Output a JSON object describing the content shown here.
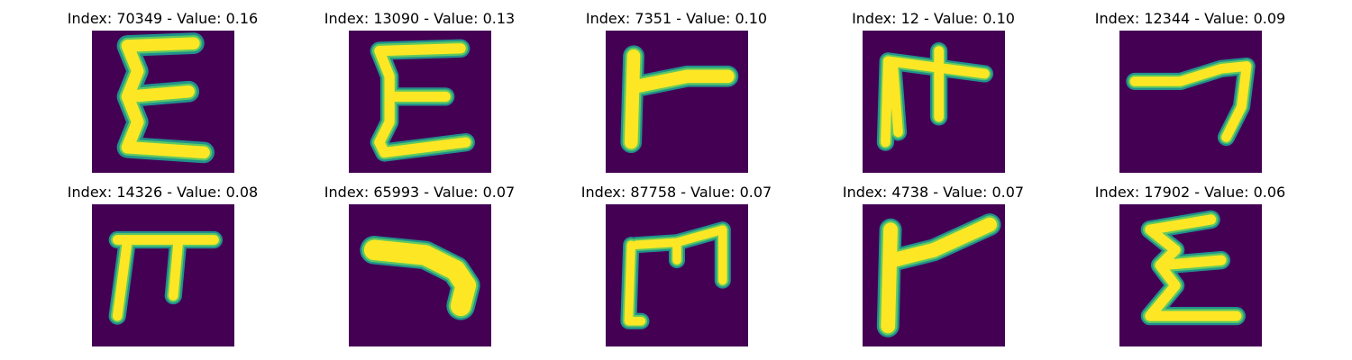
{
  "colors": {
    "background": "#440154",
    "stroke_core": "#fde725",
    "stroke_mid": "#5ec962",
    "stroke_edge": "#21918c"
  },
  "panels": [
    {
      "title": "Index: 70349 - Value: 0.16",
      "glyph": "glyph-e-upright",
      "value": 0.16
    },
    {
      "title": "Index: 13090 - Value: 0.13",
      "glyph": "glyph-e-upright-2",
      "value": 0.13
    },
    {
      "title": "Index: 7351 - Value: 0.10",
      "glyph": "glyph-gamma-flat",
      "value": 0.1
    },
    {
      "title": "Index: 12 - Value: 0.10",
      "glyph": "glyph-pi-cross",
      "value": 0.1
    },
    {
      "title": "Index: 12344 - Value: 0.09",
      "glyph": "glyph-hook-right",
      "value": 0.09
    },
    {
      "title": "Index: 14326 - Value: 0.08",
      "glyph": "glyph-pi",
      "value": 0.08
    },
    {
      "title": "Index: 65993 - Value: 0.07",
      "glyph": "glyph-hook-thick",
      "value": 0.07
    },
    {
      "title": "Index: 87758 - Value: 0.07",
      "glyph": "glyph-m-frame",
      "value": 0.07
    },
    {
      "title": "Index: 4738 - Value: 0.07",
      "glyph": "glyph-gamma-rising",
      "value": 0.07
    },
    {
      "title": "Index: 17902 - Value: 0.06",
      "glyph": "glyph-e-slant",
      "value": 0.06
    }
  ]
}
